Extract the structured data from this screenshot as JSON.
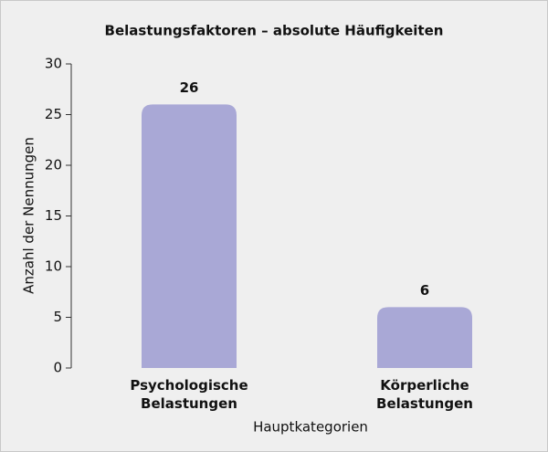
{
  "chart_data": {
    "type": "bar",
    "title": "Belastungsfaktoren – absolute Häufigkeiten",
    "categories": [
      "Psychologische Belastungen",
      "Körperliche Belastungen"
    ],
    "values": [
      26,
      6
    ],
    "color": "#a9a8d6",
    "xlabel": "Hauptkategorien",
    "ylabel": "Anzahl der Nennungen",
    "ylim": [
      0,
      30
    ],
    "yticks": [
      0,
      5,
      10,
      15,
      20,
      25,
      30
    ],
    "grid": false
  }
}
